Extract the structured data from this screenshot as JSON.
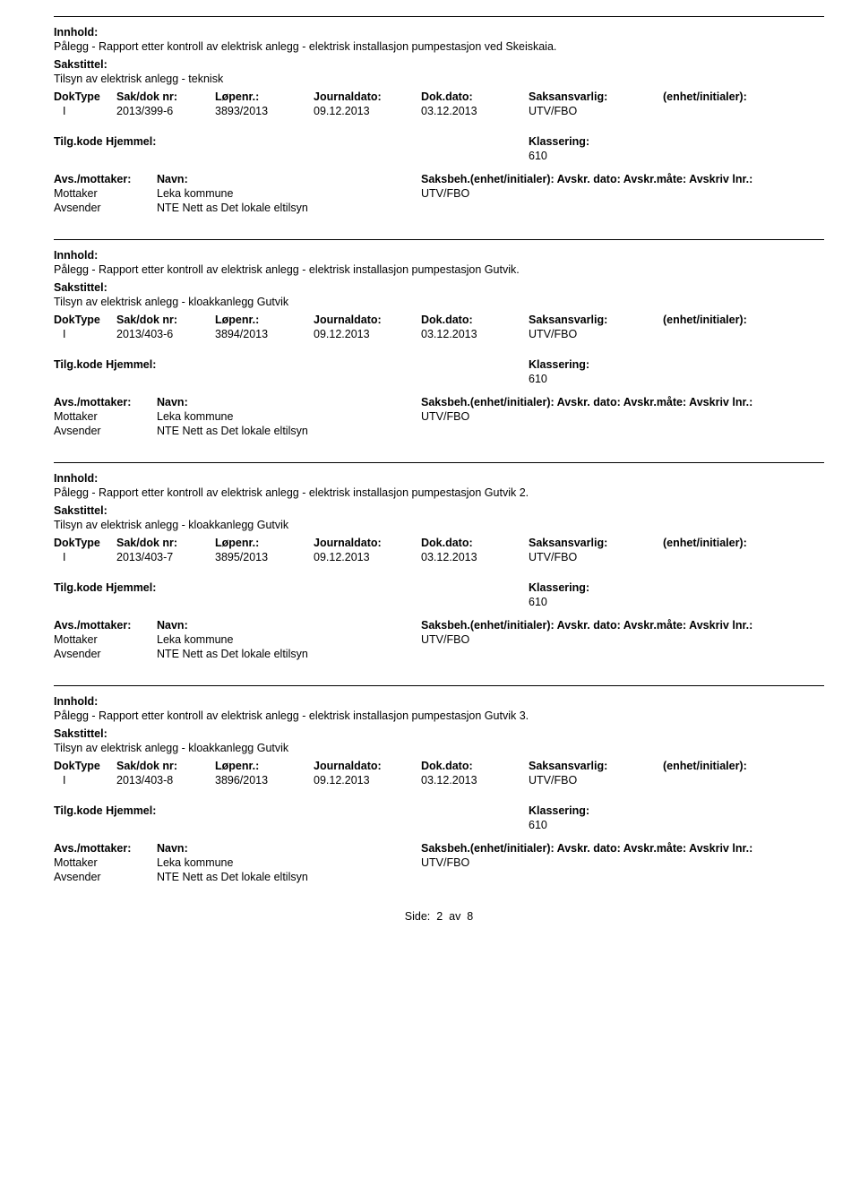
{
  "labels": {
    "innhold": "Innhold:",
    "sakstittel": "Sakstittel:",
    "doktype": "DokType",
    "sakdok": "Sak/dok nr:",
    "lopenr": "Løpenr.:",
    "journaldato": "Journaldato:",
    "dokdato": "Dok.dato:",
    "saksansvarlig": "Saksansvarlig:",
    "enhet": "(enhet/initialer):",
    "tilgkode": "Tilg.kode",
    "hjemmel": "Hjemmel:",
    "klassering": "Klassering:",
    "avsmottaker": "Avs./mottaker:",
    "navn": "Navn:",
    "saksbeh": "Saksbeh.(enhet/initialer): Avskr. dato:  Avskr.måte:  Avskriv lnr.:",
    "mottaker": "Mottaker",
    "avsender": "Avsender"
  },
  "records": [
    {
      "innhold": "Pålegg - Rapport etter kontroll av elektrisk anlegg  - elektrisk installasjon pumpestasjon ved Skeiskaia.",
      "sakstittel": "Tilsyn av elektrisk anlegg - teknisk",
      "doktype": "I",
      "sakdok": "2013/399-6",
      "lopenr": "3893/2013",
      "journaldato": "09.12.2013",
      "dokdato": "03.12.2013",
      "saksansvarlig": "UTV/FBO",
      "klassering": "610",
      "mottaker_navn": "Leka kommune",
      "mottaker_saksbeh": "UTV/FBO",
      "avsender_navn": "NTE Nett as Det lokale eltilsyn"
    },
    {
      "innhold": "Pålegg - Rapport etter kontroll av elektrisk anlegg - elektrisk installasjon pumpestasjon Gutvik.",
      "sakstittel": "Tilsyn av elektrisk anlegg - kloakkanlegg Gutvik",
      "doktype": "I",
      "sakdok": "2013/403-6",
      "lopenr": "3894/2013",
      "journaldato": "09.12.2013",
      "dokdato": "03.12.2013",
      "saksansvarlig": "UTV/FBO",
      "klassering": "610",
      "mottaker_navn": "Leka kommune",
      "mottaker_saksbeh": "UTV/FBO",
      "avsender_navn": "NTE Nett as Det lokale eltilsyn"
    },
    {
      "innhold": "Pålegg - Rapport etter kontroll av elektrisk anlegg - elektrisk installasjon pumpestasjon Gutvik 2.",
      "sakstittel": "Tilsyn av elektrisk anlegg - kloakkanlegg Gutvik",
      "doktype": "I",
      "sakdok": "2013/403-7",
      "lopenr": "3895/2013",
      "journaldato": "09.12.2013",
      "dokdato": "03.12.2013",
      "saksansvarlig": "UTV/FBO",
      "klassering": "610",
      "mottaker_navn": "Leka kommune",
      "mottaker_saksbeh": "UTV/FBO",
      "avsender_navn": "NTE Nett as Det lokale eltilsyn"
    },
    {
      "innhold": "Pålegg - Rapport etter kontroll av elektrisk anlegg - elektrisk installasjon pumpestasjon Gutvik 3.",
      "sakstittel": "Tilsyn av elektrisk anlegg - kloakkanlegg Gutvik",
      "doktype": "I",
      "sakdok": "2013/403-8",
      "lopenr": "3896/2013",
      "journaldato": "09.12.2013",
      "dokdato": "03.12.2013",
      "saksansvarlig": "UTV/FBO",
      "klassering": "610",
      "mottaker_navn": "Leka kommune",
      "mottaker_saksbeh": "UTV/FBO",
      "avsender_navn": "NTE Nett as Det lokale eltilsyn"
    }
  ],
  "footer": {
    "side_label": "Side:",
    "page_current": "2",
    "page_sep": "av",
    "page_total": "8"
  }
}
